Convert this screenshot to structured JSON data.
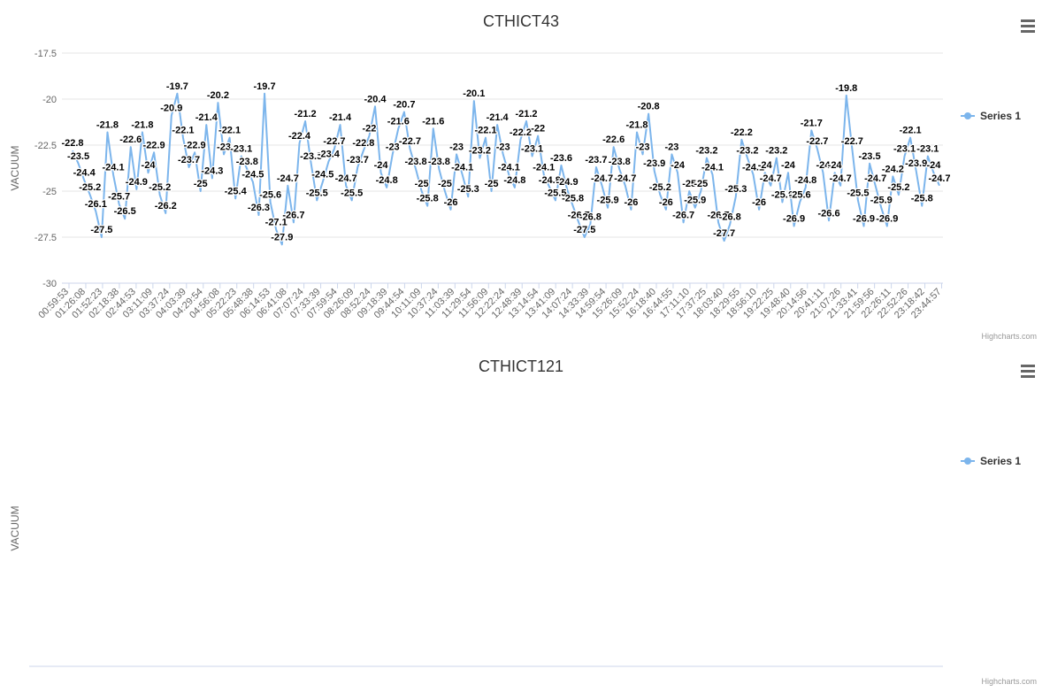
{
  "chart_data": [
    {
      "type": "line",
      "title": "CTHICT43",
      "y_label": "VACUUM",
      "credits": "Highcharts.com",
      "ylim": [
        -30,
        -17.5
      ],
      "yticks": [
        -17.5,
        -20,
        -22.5,
        -25,
        -27.5,
        -30
      ],
      "grid": true,
      "xticks": [
        "00:59:53",
        "01:26:08",
        "01:52:23",
        "02:18:38",
        "02:44:53",
        "03:11:09",
        "03:37:24",
        "04:03:39",
        "04:29:54",
        "04:56:08",
        "05:22:23",
        "05:48:38",
        "06:14:53",
        "06:41:08",
        "07:07:24",
        "07:33:39",
        "07:59:54",
        "08:26:09",
        "08:52:24",
        "09:18:39",
        "09:44:54",
        "10:11:09",
        "10:37:24",
        "11:03:39",
        "11:29:54",
        "11:56:09",
        "12:22:24",
        "12:48:39",
        "13:14:54",
        "13:41:09",
        "14:07:24",
        "14:33:39",
        "14:59:54",
        "15:26:09",
        "15:52:24",
        "16:18:40",
        "16:44:55",
        "17:11:10",
        "17:37:25",
        "18:03:40",
        "18:29:55",
        "18:56:10",
        "19:22:25",
        "19:48:40",
        "20:14:56",
        "20:41:11",
        "21:07:26",
        "21:33:41",
        "21:59:56",
        "22:26:11",
        "22:52:26",
        "23:18:42",
        "23:44:57"
      ],
      "legend": "right",
      "series": [
        {
          "name": "Series 1",
          "color": "#7cb5ec",
          "values": [
            -22.8,
            -23.5,
            -24.4,
            -25.2,
            -26.1,
            -27.5,
            -21.8,
            -24.1,
            -25.7,
            -26.5,
            -22.6,
            -24.9,
            -21.8,
            -24,
            -22.9,
            -25.2,
            -26.2,
            -20.9,
            -19.7,
            -22.1,
            -23.7,
            -22.9,
            -25,
            -21.4,
            -24.3,
            -20.2,
            -23,
            -22.1,
            -25.4,
            -23.1,
            -23.8,
            -24.5,
            -26.3,
            -19.7,
            -25.6,
            -27.1,
            -27.9,
            -24.7,
            -26.7,
            -22.4,
            -21.2,
            -23.5,
            -25.5,
            -24.5,
            -23.4,
            -22.7,
            -21.4,
            -24.7,
            -25.5,
            -23.7,
            -22.8,
            -22,
            -20.4,
            -24,
            -24.8,
            -23,
            -21.6,
            -20.7,
            -22.7,
            -23.8,
            -25,
            -25.8,
            -21.6,
            -23.8,
            -25,
            -26,
            -23,
            -24.1,
            -25.3,
            -20.1,
            -23.2,
            -22.1,
            -25,
            -21.4,
            -23,
            -24.1,
            -24.8,
            -22.2,
            -21.2,
            -23.1,
            -22,
            -24.1,
            -24.8,
            -25.5,
            -23.6,
            -24.9,
            -25.8,
            -26.7,
            -27.5,
            -26.8,
            -23.7,
            -24.7,
            -25.9,
            -22.6,
            -23.8,
            -24.7,
            -26,
            -21.8,
            -23,
            -20.8,
            -23.9,
            -25.2,
            -26,
            -23,
            -24,
            -26.7,
            -25,
            -25.9,
            -25,
            -23.2,
            -24.1,
            -26.7,
            -27.7,
            -26.8,
            -25.3,
            -22.2,
            -23.2,
            -24.1,
            -26,
            -24,
            -24.7,
            -23.2,
            -25.6,
            -24,
            -26.9,
            -25.6,
            -24.8,
            -21.7,
            -22.7,
            -24,
            -26.6,
            -24,
            -24.7,
            -19.8,
            -22.7,
            -25.5,
            -26.9,
            -23.5,
            -24.7,
            -25.9,
            -26.9,
            -24.2,
            -25.2,
            -23.1,
            -22.1,
            -23.9,
            -25.8,
            -23.1,
            -24,
            -24.7
          ]
        }
      ]
    },
    {
      "type": "line",
      "title": "CTHICT121",
      "y_label": "VACUUM",
      "credits": "Highcharts.com",
      "legend": "right",
      "series": [
        {
          "name": "Series 1",
          "color": "#7cb5ec",
          "values": []
        }
      ]
    }
  ]
}
